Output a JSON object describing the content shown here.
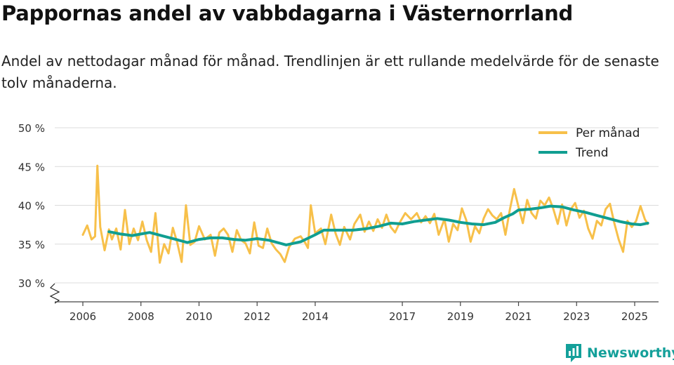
{
  "title": "Pappornas andel av vabbdagarna i Västernorrland",
  "subtitle": "Andel av nettodagar månad för månad. Trendlinjen är ett rullande medelvärde för de senaste tolv månaderna.",
  "brand": {
    "name": "Newsworthy",
    "color": "#14a09a"
  },
  "chart_data": {
    "type": "line",
    "ylim": [
      28,
      50
    ],
    "xlim": [
      2005.9,
      2025.8
    ],
    "y_ticks": [
      {
        "value": 30,
        "label": "30 %"
      },
      {
        "value": 35,
        "label": "35 %"
      },
      {
        "value": 40,
        "label": "40 %"
      },
      {
        "value": 45,
        "label": "45 %"
      },
      {
        "value": 50,
        "label": "50 %"
      }
    ],
    "x_ticks": [
      {
        "value": 2006,
        "label": "2006"
      },
      {
        "value": 2008,
        "label": "2008"
      },
      {
        "value": 2010,
        "label": "2010"
      },
      {
        "value": 2012,
        "label": "2012"
      },
      {
        "value": 2014,
        "label": "2014"
      },
      {
        "value": 2017,
        "label": "2017"
      },
      {
        "value": 2019,
        "label": "2019"
      },
      {
        "value": 2021,
        "label": "2021"
      },
      {
        "value": 2023,
        "label": "2023"
      },
      {
        "value": 2025,
        "label": "2025"
      }
    ],
    "legend_position": "top-right",
    "series": [
      {
        "name": "Per månad",
        "color": "#f7c04a",
        "points": [
          [
            2006.0,
            36.2
          ],
          [
            2006.15,
            37.4
          ],
          [
            2006.3,
            35.6
          ],
          [
            2006.42,
            36.0
          ],
          [
            2006.5,
            45.1
          ],
          [
            2006.6,
            37.2
          ],
          [
            2006.75,
            34.2
          ],
          [
            2006.9,
            36.9
          ],
          [
            2007.0,
            35.6
          ],
          [
            2007.15,
            37.0
          ],
          [
            2007.3,
            34.3
          ],
          [
            2007.45,
            39.4
          ],
          [
            2007.6,
            35.0
          ],
          [
            2007.75,
            37.0
          ],
          [
            2007.9,
            35.5
          ],
          [
            2008.05,
            37.9
          ],
          [
            2008.2,
            35.5
          ],
          [
            2008.35,
            34.0
          ],
          [
            2008.5,
            39.0
          ],
          [
            2008.65,
            32.6
          ],
          [
            2008.8,
            35.0
          ],
          [
            2008.95,
            33.8
          ],
          [
            2009.1,
            37.1
          ],
          [
            2009.25,
            35.2
          ],
          [
            2009.4,
            32.7
          ],
          [
            2009.55,
            40.0
          ],
          [
            2009.7,
            34.9
          ],
          [
            2009.85,
            35.3
          ],
          [
            2010.0,
            37.3
          ],
          [
            2010.2,
            35.6
          ],
          [
            2010.4,
            36.2
          ],
          [
            2010.55,
            33.5
          ],
          [
            2010.7,
            36.5
          ],
          [
            2010.85,
            37.0
          ],
          [
            2011.0,
            36.2
          ],
          [
            2011.15,
            34.0
          ],
          [
            2011.3,
            36.8
          ],
          [
            2011.45,
            35.5
          ],
          [
            2011.6,
            35.1
          ],
          [
            2011.75,
            33.8
          ],
          [
            2011.9,
            37.8
          ],
          [
            2012.05,
            34.8
          ],
          [
            2012.2,
            34.5
          ],
          [
            2012.35,
            37.0
          ],
          [
            2012.5,
            35.1
          ],
          [
            2012.65,
            34.3
          ],
          [
            2012.8,
            33.7
          ],
          [
            2012.95,
            32.7
          ],
          [
            2013.1,
            34.6
          ],
          [
            2013.3,
            35.7
          ],
          [
            2013.5,
            36.0
          ],
          [
            2013.65,
            35.2
          ],
          [
            2013.75,
            34.5
          ],
          [
            2013.85,
            40.0
          ],
          [
            2014.0,
            36.4
          ],
          [
            2014.2,
            37.0
          ],
          [
            2014.35,
            35.0
          ],
          [
            2014.55,
            38.8
          ],
          [
            2014.7,
            36.4
          ],
          [
            2014.85,
            34.9
          ],
          [
            2015.0,
            37.2
          ],
          [
            2015.2,
            35.6
          ],
          [
            2015.35,
            37.6
          ],
          [
            2015.55,
            38.8
          ],
          [
            2015.7,
            36.6
          ],
          [
            2015.85,
            37.9
          ],
          [
            2016.0,
            36.7
          ],
          [
            2016.15,
            38.2
          ],
          [
            2016.3,
            37.1
          ],
          [
            2016.45,
            38.8
          ],
          [
            2016.6,
            37.2
          ],
          [
            2016.75,
            36.5
          ],
          [
            2016.9,
            37.7
          ],
          [
            2017.1,
            39.0
          ],
          [
            2017.3,
            38.2
          ],
          [
            2017.5,
            39.0
          ],
          [
            2017.65,
            37.8
          ],
          [
            2017.8,
            38.6
          ],
          [
            2017.95,
            37.7
          ],
          [
            2018.1,
            38.9
          ],
          [
            2018.25,
            36.2
          ],
          [
            2018.45,
            38.2
          ],
          [
            2018.6,
            35.3
          ],
          [
            2018.75,
            37.6
          ],
          [
            2018.9,
            36.8
          ],
          [
            2019.05,
            39.6
          ],
          [
            2019.2,
            38.1
          ],
          [
            2019.35,
            35.3
          ],
          [
            2019.5,
            37.3
          ],
          [
            2019.65,
            36.4
          ],
          [
            2019.8,
            38.3
          ],
          [
            2019.95,
            39.5
          ],
          [
            2020.1,
            38.7
          ],
          [
            2020.25,
            38.2
          ],
          [
            2020.4,
            39.0
          ],
          [
            2020.55,
            36.2
          ],
          [
            2020.7,
            39.4
          ],
          [
            2020.85,
            42.1
          ],
          [
            2021.0,
            39.8
          ],
          [
            2021.15,
            37.7
          ],
          [
            2021.3,
            40.7
          ],
          [
            2021.45,
            39.0
          ],
          [
            2021.6,
            38.3
          ],
          [
            2021.75,
            40.6
          ],
          [
            2021.9,
            40.0
          ],
          [
            2022.05,
            41.0
          ],
          [
            2022.2,
            39.5
          ],
          [
            2022.35,
            37.6
          ],
          [
            2022.5,
            40.1
          ],
          [
            2022.65,
            37.4
          ],
          [
            2022.8,
            39.5
          ],
          [
            2022.95,
            40.3
          ],
          [
            2023.1,
            38.4
          ],
          [
            2023.25,
            39.3
          ],
          [
            2023.4,
            37.0
          ],
          [
            2023.55,
            35.7
          ],
          [
            2023.7,
            38.0
          ],
          [
            2023.85,
            37.4
          ],
          [
            2024.0,
            39.5
          ],
          [
            2024.15,
            40.2
          ],
          [
            2024.3,
            37.7
          ],
          [
            2024.45,
            35.6
          ],
          [
            2024.6,
            34.0
          ],
          [
            2024.75,
            38.0
          ],
          [
            2024.9,
            37.2
          ],
          [
            2025.05,
            38.0
          ],
          [
            2025.2,
            39.9
          ],
          [
            2025.35,
            38.2
          ],
          [
            2025.45,
            37.6
          ]
        ]
      },
      {
        "name": "Trend",
        "color": "#109e91",
        "points": [
          [
            2006.9,
            36.6
          ],
          [
            2007.3,
            36.3
          ],
          [
            2007.7,
            36.1
          ],
          [
            2008.0,
            36.3
          ],
          [
            2008.3,
            36.5
          ],
          [
            2008.8,
            36.0
          ],
          [
            2009.2,
            35.6
          ],
          [
            2009.6,
            35.2
          ],
          [
            2010.0,
            35.6
          ],
          [
            2010.4,
            35.8
          ],
          [
            2010.8,
            35.8
          ],
          [
            2011.2,
            35.6
          ],
          [
            2011.6,
            35.5
          ],
          [
            2012.0,
            35.7
          ],
          [
            2012.4,
            35.5
          ],
          [
            2012.7,
            35.2
          ],
          [
            2013.0,
            34.9
          ],
          [
            2013.5,
            35.3
          ],
          [
            2014.0,
            36.2
          ],
          [
            2014.3,
            36.8
          ],
          [
            2014.8,
            36.8
          ],
          [
            2015.3,
            36.8
          ],
          [
            2015.8,
            37.0
          ],
          [
            2016.2,
            37.3
          ],
          [
            2016.6,
            37.7
          ],
          [
            2017.0,
            37.6
          ],
          [
            2017.4,
            37.9
          ],
          [
            2017.8,
            38.1
          ],
          [
            2018.2,
            38.3
          ],
          [
            2018.6,
            38.1
          ],
          [
            2019.0,
            37.8
          ],
          [
            2019.4,
            37.6
          ],
          [
            2019.8,
            37.5
          ],
          [
            2020.2,
            37.8
          ],
          [
            2020.5,
            38.4
          ],
          [
            2020.8,
            38.9
          ],
          [
            2021.0,
            39.4
          ],
          [
            2021.4,
            39.5
          ],
          [
            2021.8,
            39.7
          ],
          [
            2022.1,
            39.9
          ],
          [
            2022.5,
            39.8
          ],
          [
            2022.9,
            39.4
          ],
          [
            2023.3,
            39.1
          ],
          [
            2023.7,
            38.7
          ],
          [
            2024.1,
            38.3
          ],
          [
            2024.5,
            37.9
          ],
          [
            2024.9,
            37.6
          ],
          [
            2025.2,
            37.5
          ],
          [
            2025.45,
            37.7
          ]
        ]
      }
    ]
  }
}
